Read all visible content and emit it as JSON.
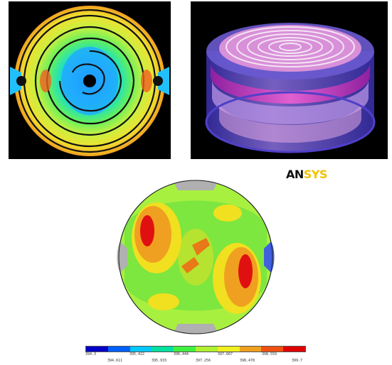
{
  "logo": {
    "part1": "AN",
    "part2": "SYS"
  },
  "legend": {
    "top_labels": [
      "394.3",
      "395.422",
      "396.444",
      "397.667",
      "398.559"
    ],
    "bottom_labels": [
      "394.611",
      "395.933",
      "397.256",
      "398.478",
      "399.7"
    ],
    "colors": [
      "#0000c8",
      "#0060ff",
      "#00c8ff",
      "#00e0a0",
      "#40f040",
      "#b0f030",
      "#f0f020",
      "#f0a020",
      "#f05010",
      "#e00000"
    ]
  }
}
